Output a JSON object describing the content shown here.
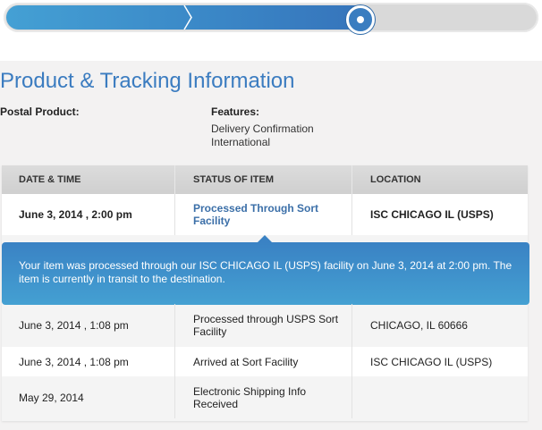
{
  "progress": {
    "fraction": 0.67,
    "colors": {
      "fill": "#3a86c6",
      "track": "#d9d9d9"
    }
  },
  "heading": "Product & Tracking Information",
  "postal_product_label": "Postal Product:",
  "features_label": "Features:",
  "features": [
    "Delivery Confirmation",
    "International"
  ],
  "table": {
    "headers": [
      "DATE & TIME",
      "STATUS OF ITEM",
      "LOCATION"
    ],
    "latest": {
      "date": "June 3, 2014 , 2:00 pm",
      "status": "Processed Through Sort Facility",
      "location": "ISC CHICAGO IL (USPS)"
    },
    "detail": "Your item was processed through our ISC CHICAGO IL (USPS) facility on June 3, 2014 at 2:00 pm. The item is currently in transit to the destination.",
    "rows": [
      {
        "date": "June 3, 2014 , 1:08 pm",
        "status": "Processed through USPS Sort Facility",
        "location": "CHICAGO, IL 60666"
      },
      {
        "date": "June 3, 2014 , 1:08 pm",
        "status": "Arrived at Sort Facility",
        "location": "ISC CHICAGO IL (USPS)"
      },
      {
        "date": "May 29, 2014",
        "status": "Electronic Shipping Info Received",
        "location": ""
      }
    ]
  }
}
